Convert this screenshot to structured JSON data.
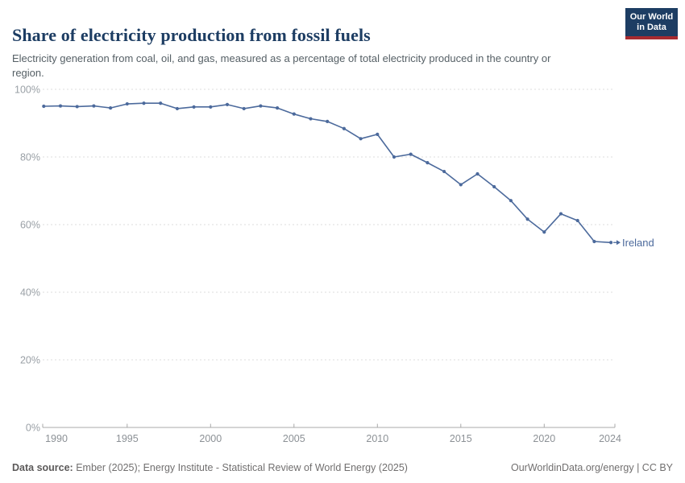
{
  "chart_data": {
    "type": "line",
    "title": "Share of electricity production from fossil fuels",
    "subtitle": "Electricity generation from coal, oil, and gas, measured as a percentage of total electricity produced in the country or region.",
    "x": [
      1990,
      1991,
      1992,
      1993,
      1994,
      1995,
      1996,
      1997,
      1998,
      1999,
      2000,
      2001,
      2002,
      2003,
      2004,
      2005,
      2006,
      2007,
      2008,
      2009,
      2010,
      2011,
      2012,
      2013,
      2014,
      2015,
      2016,
      2017,
      2018,
      2019,
      2020,
      2021,
      2022,
      2023,
      2024
    ],
    "series": [
      {
        "name": "Ireland",
        "color": "#4C6A9C",
        "values": [
          95.0,
          95.1,
          94.9,
          95.1,
          94.5,
          95.7,
          95.9,
          95.9,
          94.3,
          94.8,
          94.8,
          95.5,
          94.3,
          95.1,
          94.5,
          92.7,
          91.3,
          90.5,
          88.4,
          85.4,
          86.7,
          80.0,
          80.8,
          78.3,
          75.7,
          71.8,
          75.0,
          71.2,
          67.1,
          61.6,
          57.8,
          63.2,
          61.2,
          55.0,
          54.7
        ]
      }
    ],
    "xlim": [
      1990,
      2024
    ],
    "ylim": [
      0,
      100
    ],
    "x_ticks": [
      1990,
      1995,
      2000,
      2005,
      2010,
      2015,
      2020,
      2024
    ],
    "y_ticks": [
      0,
      20,
      40,
      60,
      80,
      100
    ],
    "y_tick_suffix": "%",
    "grid": "horizontal-dashed",
    "legend": "line-end-label",
    "end_label": "Ireland"
  },
  "logo": {
    "line1": "Our World",
    "line2": "in Data"
  },
  "footer": {
    "source_bold": "Data source:",
    "source_rest": " Ember (2025); Energy Institute - Statistical Review of World Energy (2025)",
    "credit": "OurWorldinData.org/energy | CC BY"
  },
  "colors": {
    "line": "#4C6A9C",
    "grid": "#dedede",
    "axis": "#a8a8a8",
    "title": "#1d3d63",
    "logo_bg": "#1d3d63",
    "logo_stripe": "#a62b30"
  }
}
